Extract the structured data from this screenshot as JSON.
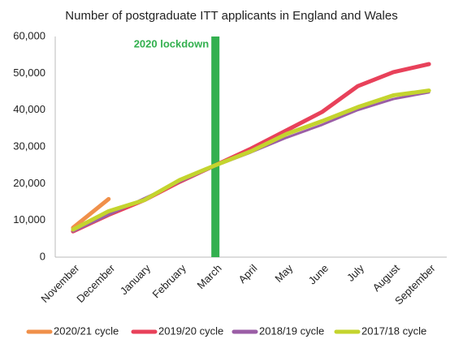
{
  "chart_data": {
    "type": "line",
    "title": "Number of postgraduate ITT applicants in England and Wales",
    "categories": [
      "November",
      "December",
      "January",
      "February",
      "March",
      "April",
      "May",
      "June",
      "July",
      "August",
      "September"
    ],
    "series": [
      {
        "name": "2020/21 cycle",
        "color": "#f0904a",
        "values": [
          8000,
          15800,
          null,
          null,
          null,
          null,
          null,
          null,
          null,
          null,
          null
        ]
      },
      {
        "name": "2019/20 cycle",
        "color": "#e8415a",
        "values": [
          7000,
          11500,
          15500,
          20500,
          25000,
          29500,
          34500,
          39500,
          46500,
          50300,
          52500
        ]
      },
      {
        "name": "2018/19 cycle",
        "color": "#9b5ea6",
        "values": [
          7000,
          11500,
          16000,
          20500,
          24800,
          28500,
          32500,
          36000,
          40000,
          43000,
          44800
        ]
      },
      {
        "name": "2017/18 cycle",
        "color": "#c4d42e",
        "values": [
          7500,
          12500,
          15500,
          21000,
          25000,
          28800,
          33500,
          37000,
          40800,
          44000,
          45300
        ]
      }
    ],
    "ylim": [
      0,
      60000
    ],
    "yticks": [
      0,
      {
        "value": 10000,
        "label": "10,000"
      },
      {
        "value": 20000,
        "label": "20,000"
      },
      {
        "value": 30000,
        "label": "30,000"
      },
      {
        "value": 40000,
        "label": "40,000"
      },
      {
        "value": 50000,
        "label": "50,000"
      },
      {
        "value": 60000,
        "label": "60,000"
      }
    ],
    "lockdown": {
      "label": "2020 lockdown",
      "at": "March",
      "color": "#33b04f"
    },
    "legend": "bottom"
  }
}
